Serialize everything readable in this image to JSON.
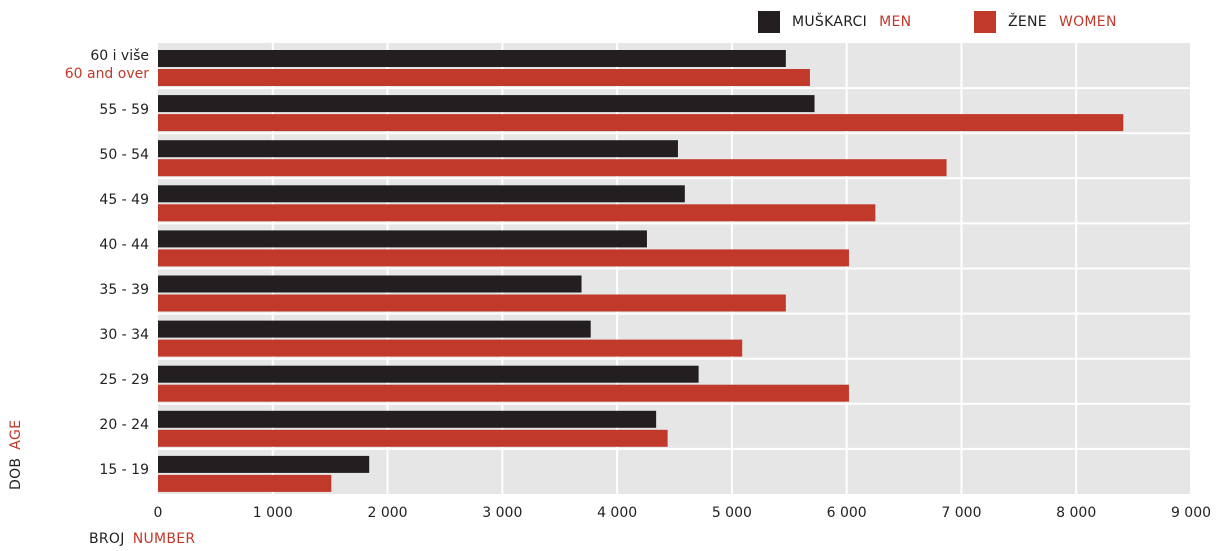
{
  "chart_data": {
    "type": "bar",
    "orientation": "horizontal",
    "categories": [
      {
        "label": "60 i više",
        "label_en": "60 and over"
      },
      {
        "label": "55 - 59"
      },
      {
        "label": "50 - 54"
      },
      {
        "label": "45 - 49"
      },
      {
        "label": "40 - 44"
      },
      {
        "label": "35 - 39"
      },
      {
        "label": "30 - 34"
      },
      {
        "label": "25 - 29"
      },
      {
        "label": "20 - 24"
      },
      {
        "label": "15 - 19"
      }
    ],
    "series": [
      {
        "name": "MUŠKARCI",
        "name_en": "MEN",
        "color": "#231f20",
        "values": [
          5470,
          5720,
          4530,
          4590,
          4260,
          3690,
          3770,
          4710,
          4340,
          1840
        ]
      },
      {
        "name": "ŽENE",
        "name_en": "WOMEN",
        "color": "#c0392b",
        "values": [
          5680,
          8410,
          6870,
          6250,
          6020,
          5470,
          5090,
          6020,
          4440,
          1510
        ]
      }
    ],
    "xticks": [
      "0",
      "1 000",
      "2 000",
      "3 000",
      "4 000",
      "5 000",
      "6 000",
      "7 000",
      "8 000",
      "9 000"
    ],
    "xlim": [
      0,
      9000
    ],
    "xlabel": "BROJ",
    "xlabel_en": "NUMBER",
    "ylabel": "DOB",
    "ylabel_en": "AGE",
    "grid": true,
    "legend_position": "top-right",
    "plot_background": "#e6e6e7"
  }
}
